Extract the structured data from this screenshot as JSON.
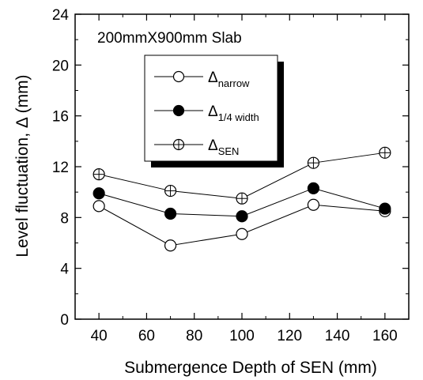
{
  "chart_data": {
    "type": "line",
    "annotation": "200mmX900mm Slab",
    "xlabel": "Submergence Depth of SEN (mm)",
    "ylabel": "Level fluctuation, Δ (mm)",
    "xlim": [
      30,
      170
    ],
    "ylim": [
      0,
      24
    ],
    "x_ticks": [
      40,
      60,
      80,
      100,
      120,
      140,
      160
    ],
    "y_ticks": [
      0,
      4,
      8,
      12,
      16,
      20,
      24
    ],
    "x": [
      40,
      70,
      100,
      130,
      160
    ],
    "grid": false,
    "legend_position": "top-center",
    "series": [
      {
        "symbol": "Δ",
        "subscript": "narrow",
        "marker": "open-circle",
        "values": [
          8.9,
          5.8,
          6.7,
          9.0,
          8.5
        ]
      },
      {
        "symbol": "Δ",
        "subscript": "1/4 width",
        "marker": "filled-circle",
        "values": [
          9.9,
          8.3,
          8.1,
          10.3,
          8.7
        ]
      },
      {
        "symbol": "Δ",
        "subscript": "SEN",
        "marker": "crossed-circle",
        "values": [
          11.4,
          10.1,
          9.5,
          12.3,
          13.1
        ]
      }
    ],
    "colors": {
      "line": "#000000",
      "marker_stroke": "#000000",
      "filled_marker": "#000000"
    }
  }
}
